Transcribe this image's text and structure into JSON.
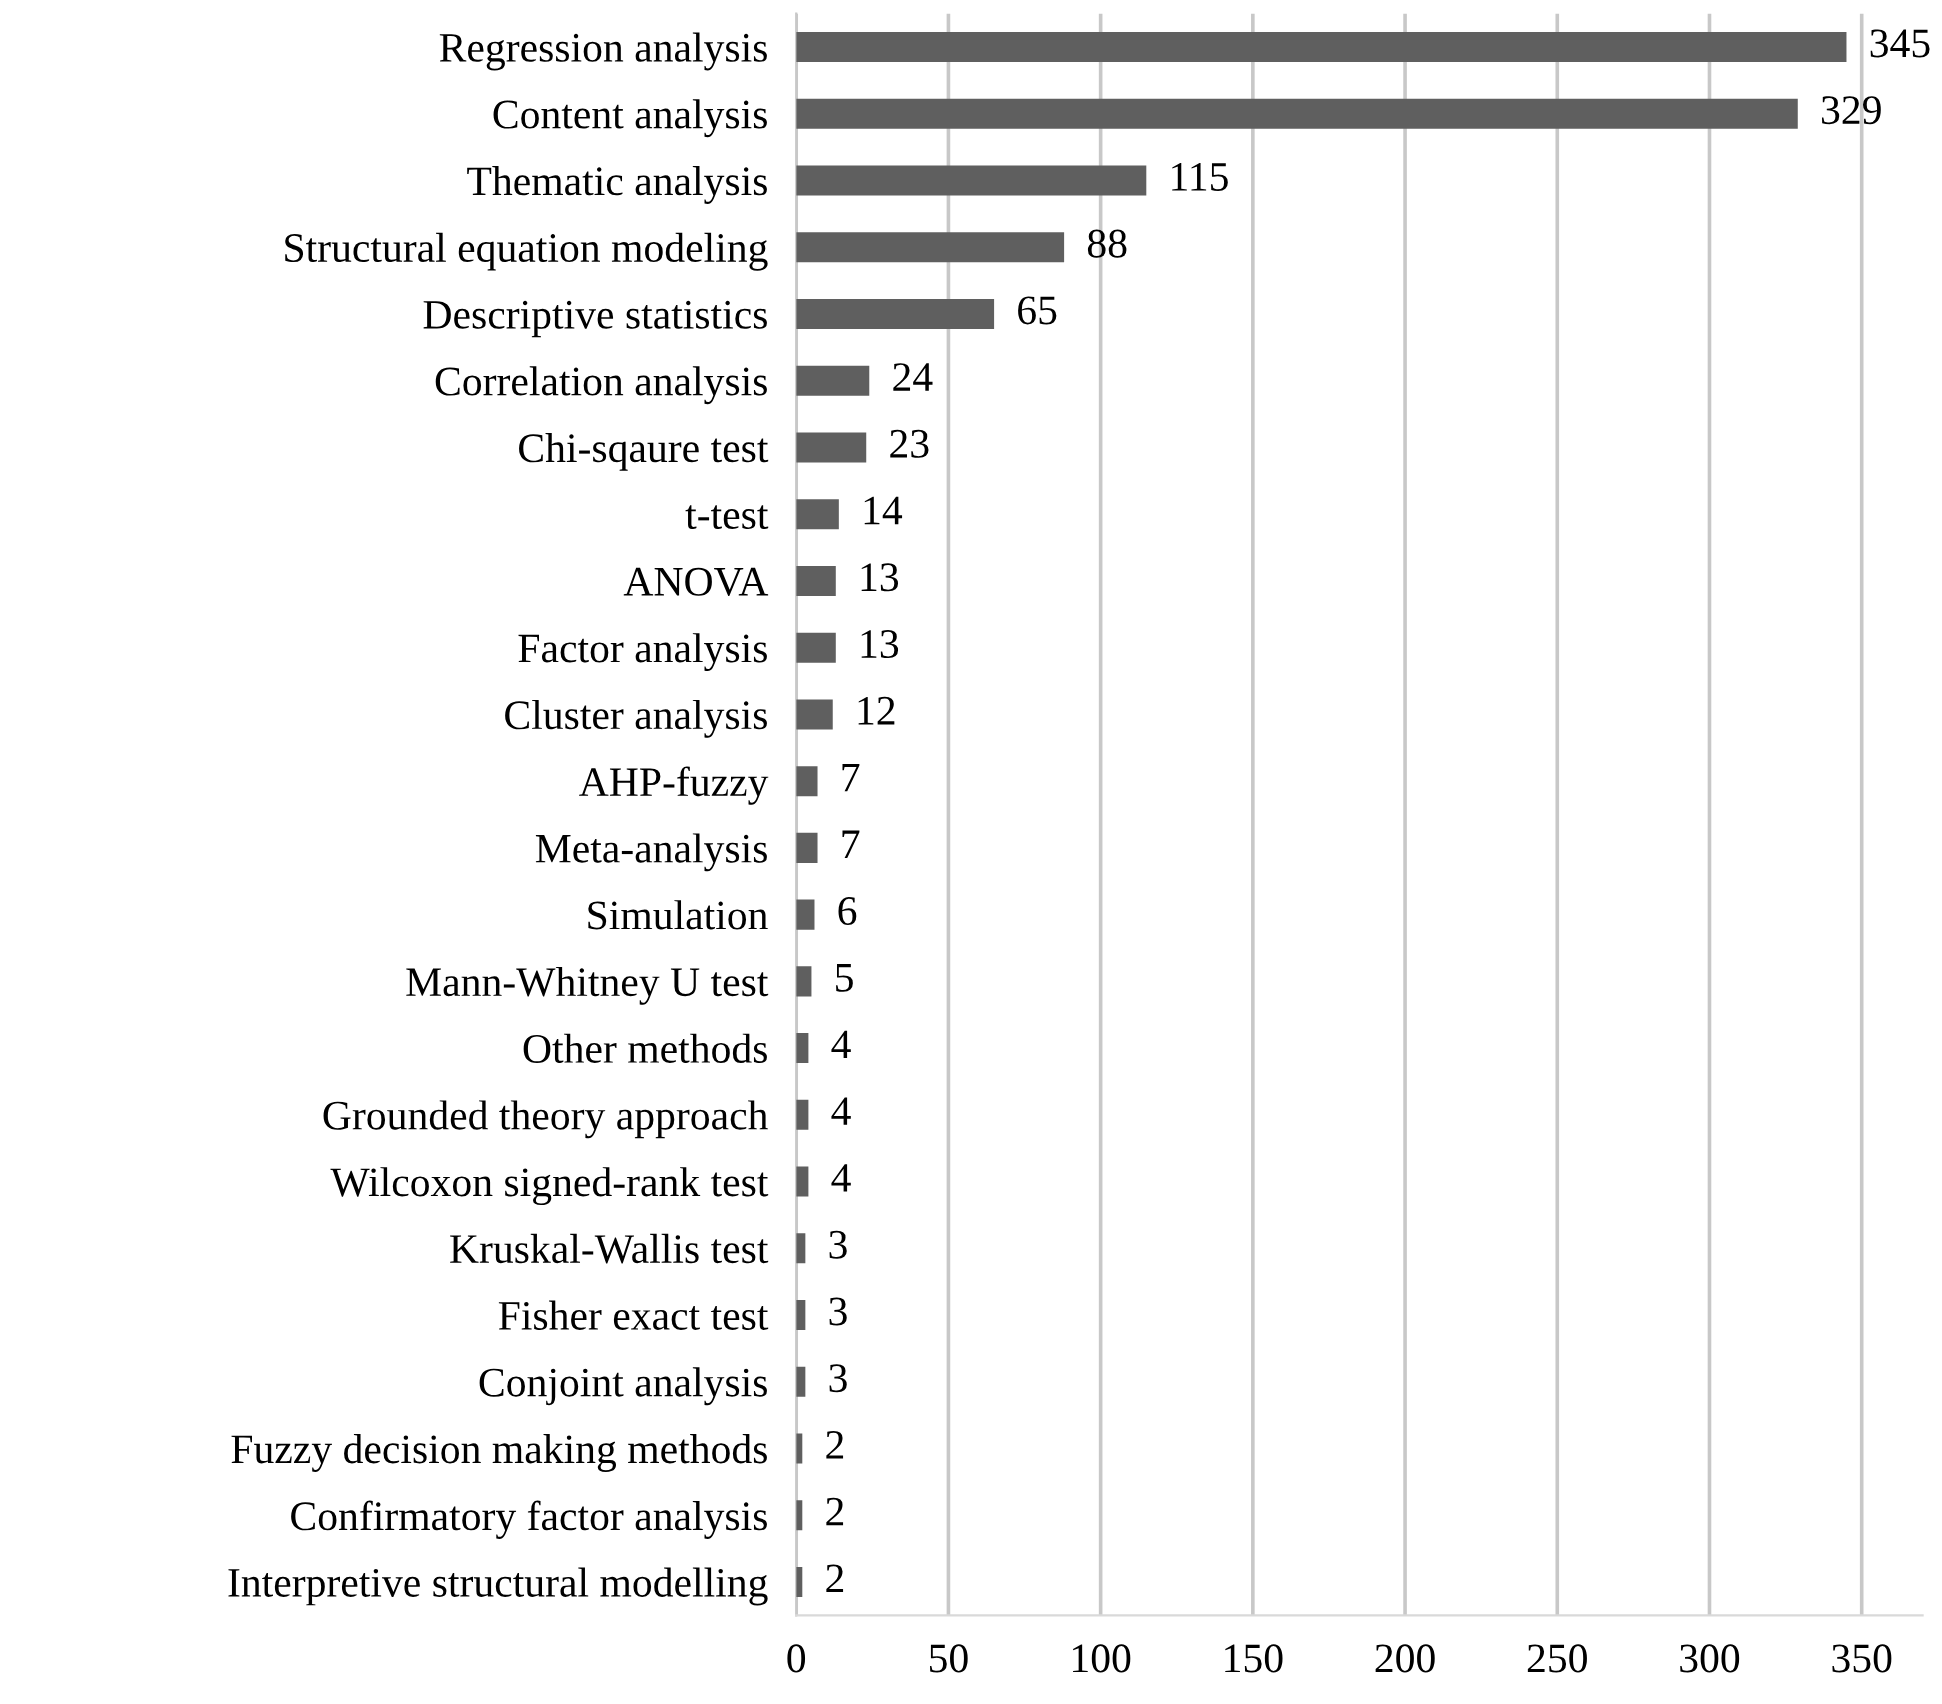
{
  "chart_data": {
    "type": "bar",
    "orientation": "horizontal",
    "categories": [
      "Regression analysis",
      "Content analysis",
      "Thematic analysis",
      "Structural equation modeling",
      "Descriptive statistics",
      "Correlation analysis",
      "Chi-sqaure test",
      "t-test",
      "ANOVA",
      "Factor analysis",
      "Cluster analysis",
      "AHP-fuzzy",
      "Meta-analysis",
      "Simulation",
      "Mann-Whitney U test",
      "Other methods",
      "Grounded theory approach",
      "Wilcoxon signed-rank test",
      "Kruskal-Wallis test",
      "Fisher exact test",
      "Conjoint analysis",
      "Fuzzy decision making methods",
      "Confirmatory factor analysis",
      "Interpretive structural modelling"
    ],
    "values": [
      345,
      329,
      115,
      88,
      65,
      24,
      23,
      14,
      13,
      13,
      12,
      7,
      7,
      6,
      5,
      4,
      4,
      4,
      3,
      3,
      3,
      2,
      2,
      2
    ],
    "color": "#5f5f5f",
    "xlim": [
      0,
      370
    ],
    "xticks": [
      0,
      50,
      100,
      150,
      200,
      250,
      300,
      350
    ],
    "grid": "x",
    "data_labels": true
  }
}
